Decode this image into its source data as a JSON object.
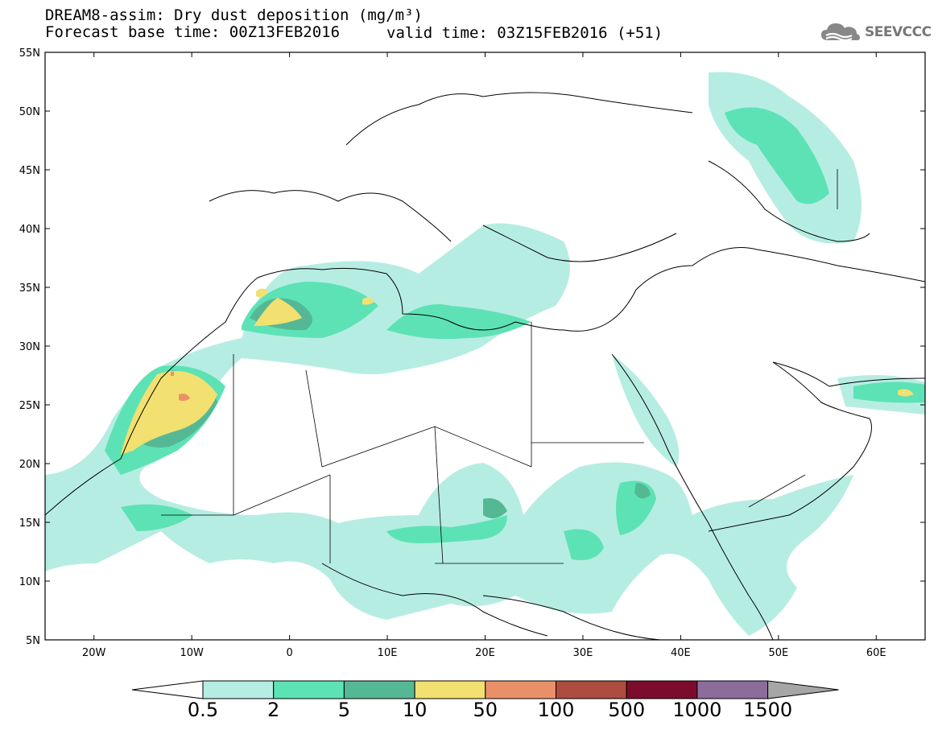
{
  "header": {
    "title_line1": "DREAM8-assim: Dry dust deposition (mg/m³)",
    "title_line2": "Forecast base time: 00Z13FEB2016",
    "valid_time": "valid time: 03Z15FEB2016 (+51)",
    "logo_text": "SEEVCCC",
    "logo_icon": "cloud-icon"
  },
  "map": {
    "lon_range": [
      -25,
      65
    ],
    "lat_range": [
      5,
      55
    ],
    "lat_labels": [
      "5N",
      "10N",
      "15N",
      "20N",
      "25N",
      "30N",
      "35N",
      "40N",
      "45N",
      "50N",
      "55N"
    ],
    "lat_values": [
      5,
      10,
      15,
      20,
      25,
      30,
      35,
      40,
      45,
      50,
      55
    ],
    "lon_labels": [
      "20W",
      "10W",
      "0",
      "10E",
      "20E",
      "30E",
      "40E",
      "50E",
      "60E"
    ],
    "lon_values": [
      -20,
      -10,
      0,
      10,
      20,
      30,
      40,
      50,
      60
    ]
  },
  "legend": {
    "labels": [
      "0.5",
      "2",
      "5",
      "10",
      "50",
      "100",
      "500",
      "1000",
      "1500"
    ],
    "colors": [
      "#b6ede2",
      "#5de2b6",
      "#55b894",
      "#f2e070",
      "#ea9068",
      "#ad4c40",
      "#7c0c2c",
      "#8c6c9c",
      "#a6a6a6"
    ],
    "under_color": "#ffffff"
  }
}
